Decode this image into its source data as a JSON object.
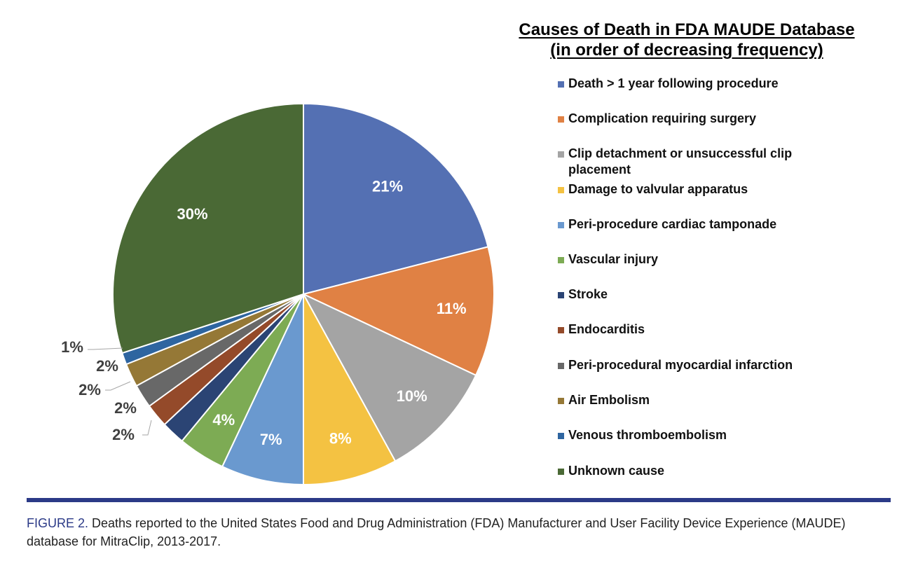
{
  "chart_data": {
    "type": "pie",
    "title": "Causes of Death in FDA MAUDE Database",
    "subtitle": "(in order of decreasing frequency)",
    "start_angle": "12 o'clock",
    "direction": "clockwise",
    "legend_position": "right",
    "slices": [
      {
        "name": "Death > 1 year following procedure",
        "value": 21,
        "label": "21%",
        "color": "#5470b3"
      },
      {
        "name": "Complication requiring surgery",
        "value": 11,
        "label": "11%",
        "color": "#e08144"
      },
      {
        "name": "Clip detachment or unsuccessful clip placement",
        "value": 10,
        "label": "10%",
        "color": "#a4a4a4"
      },
      {
        "name": "Damage to valvular apparatus",
        "value": 8,
        "label": "8%",
        "color": "#f4c242"
      },
      {
        "name": "Peri-procedure cardiac tamponade",
        "value": 7,
        "label": "7%",
        "color": "#6a99cf"
      },
      {
        "name": "Vascular injury",
        "value": 4,
        "label": "4%",
        "color": "#7dab54"
      },
      {
        "name": "Stroke",
        "value": 2,
        "label": "2%",
        "color": "#2b4474"
      },
      {
        "name": "Endocarditis",
        "value": 2,
        "label": "2%",
        "color": "#944a2a"
      },
      {
        "name": "Peri-procedural myocardial infarction",
        "value": 2,
        "label": "2%",
        "color": "#686868"
      },
      {
        "name": "Air Embolism",
        "value": 2,
        "label": "2%",
        "color": "#957836"
      },
      {
        "name": "Venous thromboembolism",
        "value": 1,
        "label": "1%",
        "color": "#2e65a0"
      },
      {
        "name": "Unknown cause",
        "value": 30,
        "label": "30%",
        "color": "#4a6935"
      }
    ]
  },
  "caption": {
    "label": "FIGURE 2.",
    "text": " Deaths reported to the United States Food and Drug Administration (FDA) Manufacturer and User Facility Device Experience (MAUDE) database for MitraClip, 2013-2017."
  },
  "colors": {
    "rule": "#2b3a87",
    "caption_label": "#2b3a87"
  }
}
